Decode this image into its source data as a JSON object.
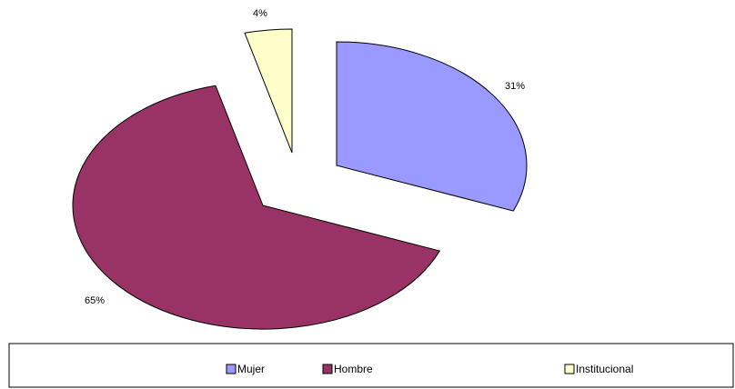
{
  "chart_data": {
    "type": "pie",
    "exploded": true,
    "legend_position": "bottom",
    "slices": [
      {
        "name": "Mujer",
        "value": 31,
        "label": "31%",
        "color": "#9999ff"
      },
      {
        "name": "Hombre",
        "value": 65,
        "label": "65%",
        "color": "#993366"
      },
      {
        "name": "Institucional",
        "value": 4,
        "label": "4%",
        "color": "#ffffcc"
      }
    ]
  }
}
